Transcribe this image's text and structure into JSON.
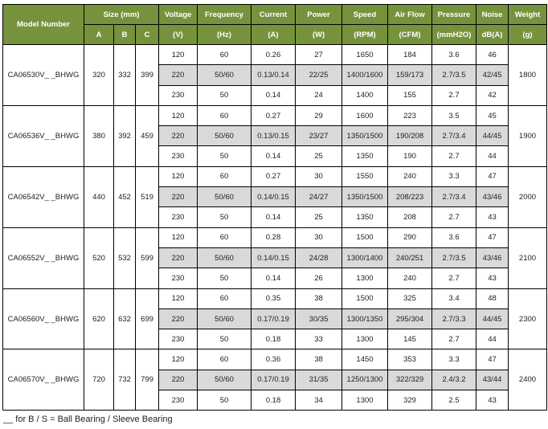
{
  "header": {
    "model": "Model Number",
    "size": "Size (mm)",
    "size_cols": [
      "A",
      "B",
      "C"
    ],
    "columns": [
      {
        "label": "Voltage",
        "unit": "(V)"
      },
      {
        "label": "Frequency",
        "unit": "(Hz)"
      },
      {
        "label": "Current",
        "unit": "(A)"
      },
      {
        "label": "Power",
        "unit": "(W)"
      },
      {
        "label": "Speed",
        "unit": "(RPM)"
      },
      {
        "label": "Air Flow",
        "unit": "(CFM)"
      },
      {
        "label": "Pressure",
        "unit": "(mmH2O)"
      },
      {
        "label": "Noise",
        "unit": "dB(A)"
      },
      {
        "label": "Weight",
        "unit": "(g)"
      }
    ]
  },
  "models": [
    {
      "model": "CA06530V_ _BHWG",
      "a": "320",
      "b": "332",
      "c": "399",
      "weight": "1800",
      "rows": [
        [
          "120",
          "60",
          "0.26",
          "27",
          "1650",
          "184",
          "3.6",
          "46"
        ],
        [
          "220",
          "50/60",
          "0.13/0.14",
          "22/25",
          "1400/1600",
          "159/173",
          "2.7/3.5",
          "42/45"
        ],
        [
          "230",
          "50",
          "0.14",
          "24",
          "1400",
          "155",
          "2.7",
          "42"
        ]
      ]
    },
    {
      "model": "CA06536V_ _BHWG",
      "a": "380",
      "b": "392",
      "c": "459",
      "weight": "1900",
      "rows": [
        [
          "120",
          "60",
          "0.27",
          "29",
          "1600",
          "223",
          "3.5",
          "45"
        ],
        [
          "220",
          "50/60",
          "0.13/0.15",
          "23/27",
          "1350/1500",
          "190/208",
          "2.7/3.4",
          "44/45"
        ],
        [
          "230",
          "50",
          "0.14",
          "25",
          "1350",
          "190",
          "2.7",
          "44"
        ]
      ]
    },
    {
      "model": "CA06542V_ _BHWG",
      "a": "440",
      "b": "452",
      "c": "519",
      "weight": "2000",
      "rows": [
        [
          "120",
          "60",
          "0.27",
          "30",
          "1550",
          "240",
          "3.3",
          "47"
        ],
        [
          "220",
          "50/60",
          "0.14/0.15",
          "24/27",
          "1350/1500",
          "208/223",
          "2.7/3.4",
          "43/46"
        ],
        [
          "230",
          "50",
          "0.14",
          "25",
          "1350",
          "208",
          "2.7",
          "43"
        ]
      ]
    },
    {
      "model": "CA06552V_ _BHWG",
      "a": "520",
      "b": "532",
      "c": "599",
      "weight": "2100",
      "rows": [
        [
          "120",
          "60",
          "0.28",
          "30",
          "1500",
          "290",
          "3.6",
          "47"
        ],
        [
          "220",
          "50/60",
          "0.14/0.15",
          "24/28",
          "1300/1400",
          "240/251",
          "2.7/3.5",
          "43/46"
        ],
        [
          "230",
          "50",
          "0.14",
          "26",
          "1300",
          "240",
          "2.7",
          "43"
        ]
      ]
    },
    {
      "model": "CA06560V_ _BHWG",
      "a": "620",
      "b": "632",
      "c": "699",
      "weight": "2300",
      "rows": [
        [
          "120",
          "60",
          "0.35",
          "38",
          "1500",
          "325",
          "3.4",
          "48"
        ],
        [
          "220",
          "50/60",
          "0.17/0.19",
          "30/35",
          "1300/1350",
          "295/304",
          "2.7/3.3",
          "44/45"
        ],
        [
          "230",
          "50",
          "0.18",
          "33",
          "1300",
          "145",
          "2.7",
          "44"
        ]
      ]
    },
    {
      "model": "CA06570V_ _BHWG",
      "a": "720",
      "b": "732",
      "c": "799",
      "weight": "2400",
      "rows": [
        [
          "120",
          "60",
          "0.36",
          "38",
          "1450",
          "353",
          "3.3",
          "47"
        ],
        [
          "220",
          "50/60",
          "0.17/0.19",
          "31/35",
          "1250/1300",
          "322/329",
          "2.4/3.2",
          "43/44"
        ],
        [
          "230",
          "50",
          "0.18",
          "34",
          "1300",
          "329",
          "2.5",
          "43"
        ]
      ]
    }
  ],
  "footnote": "__ for B / S = Ball Bearing / Sleeve Bearing",
  "colors": {
    "header_bg": "#76923c",
    "shade": "#d9d9d9"
  }
}
